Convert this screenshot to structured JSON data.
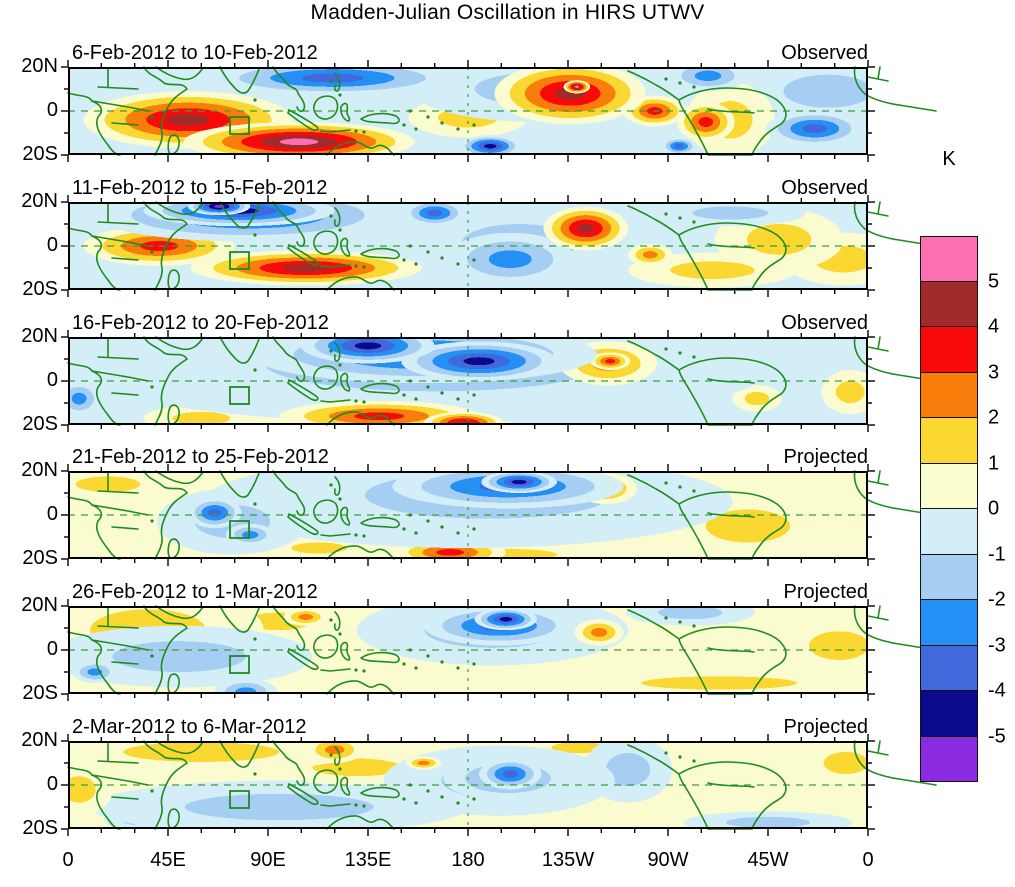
{
  "title": "Madden-Julian Oscillation in HIRS UTWV",
  "colorbar": {
    "unit": "K",
    "tick_labels": [
      "5",
      "4",
      "3",
      "2",
      "1",
      "0",
      "-1",
      "-2",
      "-3",
      "-4",
      "-5"
    ],
    "colors": [
      "#FC6FB2",
      "#A12B28",
      "#F80A0A",
      "#F97D0B",
      "#FBD831",
      "#FBFBD0",
      "#D4EEF7",
      "#A6CEF2",
      "#2490F5",
      "#4269DB",
      "#0A0A8C",
      "#8A2BE2"
    ]
  },
  "axes": {
    "x_ticks": [
      "0",
      "45E",
      "90E",
      "135E",
      "180",
      "135W",
      "90W",
      "45W",
      "0"
    ],
    "x_tick_lons": [
      0,
      45,
      90,
      135,
      180,
      225,
      270,
      315,
      360
    ],
    "y_ticks": [
      "20N",
      "0",
      "20S"
    ]
  },
  "map_style": {
    "coast_color": "#1e8c1e",
    "dash_color": "#3aa03a",
    "frame_color": "#000000"
  },
  "chart_data": {
    "type": "heatmap",
    "title": "Madden-Julian Oscillation in HIRS UTWV",
    "unit": "K",
    "value_levels": [
      5,
      4,
      3,
      2,
      1,
      0,
      -1,
      -2,
      -3,
      -4,
      -5
    ],
    "x_axis": {
      "ticks": [
        "0",
        "45E",
        "90E",
        "135E",
        "180",
        "135W",
        "90W",
        "45W",
        "0"
      ],
      "range_deg_lon": [
        0,
        360
      ]
    },
    "y_axis": {
      "ticks": [
        "20N",
        "0",
        "20S"
      ],
      "range_deg_lat": [
        20,
        -20
      ]
    },
    "legend_position": "right",
    "panels": [
      {
        "label": "6-Feb-2012 to 10-Feb-2012",
        "status": "Observed",
        "base": "#D4EEF7",
        "anomalies": [
          {
            "lon": 229,
            "lat": 11,
            "rlon": 6,
            "rlat": 3,
            "value": 5.4
          },
          {
            "lon": 226,
            "lat": 8,
            "rlon": 34,
            "rlat": 14,
            "value": 4.7
          },
          {
            "lon": 104,
            "lat": -14,
            "rlon": 52,
            "rlat": 9,
            "value": 5.2
          },
          {
            "lon": 54,
            "lat": -4,
            "rlon": 47,
            "rlat": 13,
            "value": 4.6
          },
          {
            "lon": 287,
            "lat": -5,
            "rlon": 13,
            "rlat": 9,
            "value": 3.9
          },
          {
            "lon": 264,
            "lat": 0,
            "rlon": 14,
            "rlat": 7,
            "value": 3.4
          },
          {
            "lon": 119,
            "lat": 15,
            "rlon": 56,
            "rlat": 8,
            "value": -3.6
          },
          {
            "lon": 336,
            "lat": -8,
            "rlon": 22,
            "rlat": 8,
            "value": -3.3
          },
          {
            "lon": 190,
            "lat": -16,
            "rlon": 14,
            "rlat": 5,
            "value": -4.2
          },
          {
            "lon": 275,
            "lat": -16,
            "rlon": 8,
            "rlat": 4,
            "value": -3.6
          },
          {
            "lon": 288,
            "lat": 16,
            "rlon": 18,
            "rlat": 7,
            "value": -2.4
          },
          {
            "lon": 298,
            "lat": -4,
            "rlon": 20,
            "rlat": 17,
            "value": 1.6
          },
          {
            "lon": 212,
            "lat": 10,
            "rlon": 58,
            "rlat": 15,
            "value": -1.7
          },
          {
            "lon": 342,
            "lat": 9,
            "rlon": 40,
            "rlat": 15,
            "value": -1.6
          },
          {
            "lon": 27,
            "lat": 17,
            "rlon": 40,
            "rlat": 6,
            "value": -0.9
          },
          {
            "lon": 180,
            "lat": -3,
            "rlon": 27,
            "rlat": 9,
            "value": 1.3
          }
        ]
      },
      {
        "label": "11-Feb-2012 to 15-Feb-2012",
        "status": "Observed",
        "base": "#D4EEF7",
        "anomalies": [
          {
            "lon": 68,
            "lat": 18,
            "rlon": 14,
            "rlat": 4,
            "value": -5.5
          },
          {
            "lon": 77,
            "lat": 16,
            "rlon": 43,
            "rlat": 7,
            "value": -4.6
          },
          {
            "lon": 81,
            "lat": 14,
            "rlon": 70,
            "rlat": 12,
            "value": -3.2
          },
          {
            "lon": 165,
            "lat": 15,
            "rlon": 14,
            "rlat": 6,
            "value": -3.5
          },
          {
            "lon": 107,
            "lat": -10,
            "rlon": 52,
            "rlat": 8,
            "value": 4.6
          },
          {
            "lon": 41,
            "lat": 0,
            "rlon": 34,
            "rlat": 9,
            "value": 3.7
          },
          {
            "lon": 233,
            "lat": 8,
            "rlon": 19,
            "rlat": 10,
            "value": 4.4
          },
          {
            "lon": 199,
            "lat": -6,
            "rlon": 29,
            "rlat": 12,
            "value": -2.9
          },
          {
            "lon": 262,
            "lat": -4,
            "rlon": 10,
            "rlat": 5,
            "value": 2.7
          },
          {
            "lon": 203,
            "lat": 1,
            "rlon": 52,
            "rlat": 18,
            "value": -1.8
          },
          {
            "lon": 298,
            "lat": 15,
            "rlon": 34,
            "rlat": 6,
            "value": -1.4
          },
          {
            "lon": 290,
            "lat": -11,
            "rlon": 38,
            "rlat": 8,
            "value": 1.5
          },
          {
            "lon": 320,
            "lat": 3,
            "rlon": 29,
            "rlat": 14,
            "value": 1.4
          },
          {
            "lon": 349,
            "lat": -6,
            "rlon": 27,
            "rlat": 12,
            "value": 1.7
          }
        ]
      },
      {
        "label": "16-Feb-2012 to 20-Feb-2012",
        "status": "Observed",
        "base": "#D4EEF7",
        "anomalies": [
          {
            "lon": 135,
            "lat": 16,
            "rlon": 30,
            "rlat": 8,
            "value": -4.7
          },
          {
            "lon": 185,
            "lat": 9,
            "rlon": 35,
            "rlat": 9,
            "value": -4.6
          },
          {
            "lon": 160,
            "lat": 12,
            "rlon": 78,
            "rlat": 13,
            "value": -3.4
          },
          {
            "lon": 244,
            "lat": 9,
            "rlon": 9,
            "rlat": 4,
            "value": 3.5
          },
          {
            "lon": 243,
            "lat": 8,
            "rlon": 22,
            "rlat": 10,
            "value": 2.8
          },
          {
            "lon": 178,
            "lat": -19,
            "rlon": 18,
            "rlat": 5,
            "value": 4.3
          },
          {
            "lon": 140,
            "lat": -16,
            "rlon": 45,
            "rlat": 7,
            "value": 3.6
          },
          {
            "lon": 165,
            "lat": 8,
            "rlon": 115,
            "rlat": 19,
            "value": -2.2
          },
          {
            "lon": 160,
            "lat": 5,
            "rlon": 155,
            "rlat": 24,
            "value": -1.5
          },
          {
            "lon": 245,
            "lat": 6,
            "rlon": 36,
            "rlat": 14,
            "value": 1.8
          },
          {
            "lon": 140,
            "lat": -13,
            "rlon": 68,
            "rlat": 11,
            "value": 1.9
          },
          {
            "lon": 60,
            "lat": -17,
            "rlon": 26,
            "rlat": 6,
            "value": 1.6
          },
          {
            "lon": 5,
            "lat": -8,
            "rlon": 10,
            "rlat": 8,
            "value": -2.3
          },
          {
            "lon": 278,
            "lat": -3,
            "rlon": 10,
            "rlat": 6,
            "value": -2.6
          },
          {
            "lon": 310,
            "lat": -8,
            "rlon": 11,
            "rlat": 6,
            "value": 1.5
          },
          {
            "lon": 352,
            "lat": -5,
            "rlon": 13,
            "rlat": 10,
            "value": 1.4
          },
          {
            "lon": 50,
            "lat": 14,
            "rlon": 22,
            "rlat": 6,
            "value": 1.3
          }
        ]
      },
      {
        "label": "21-Feb-2012 to 25-Feb-2012",
        "status": "Projected",
        "base": "#FBFBD0",
        "anomalies": [
          {
            "lon": 203,
            "lat": 15,
            "rlon": 17,
            "rlat": 5,
            "value": -4.6
          },
          {
            "lon": 198,
            "lat": 13,
            "rlon": 52,
            "rlat": 10,
            "value": -3.3
          },
          {
            "lon": 242,
            "lat": 12,
            "rlon": 14,
            "rlat": 7,
            "value": 2.9
          },
          {
            "lon": 66,
            "lat": 1,
            "rlon": 12,
            "rlat": 7,
            "value": -3.4
          },
          {
            "lon": 82,
            "lat": -9,
            "rlon": 11,
            "rlat": 5,
            "value": -2.7
          },
          {
            "lon": 189,
            "lat": 9,
            "rlon": 83,
            "rlat": 16,
            "value": -2.2
          },
          {
            "lon": 264,
            "lat": 8,
            "rlon": 7,
            "rlat": 4,
            "value": 2.3
          },
          {
            "lon": 74,
            "lat": -3,
            "rlon": 34,
            "rlat": 15,
            "value": -1.6
          },
          {
            "lon": 180,
            "lat": 6,
            "rlon": 119,
            "rlat": 21,
            "value": -1.3
          },
          {
            "lon": 18,
            "lat": 14,
            "rlon": 29,
            "rlat": 7,
            "value": 1.5
          },
          {
            "lon": 113,
            "lat": -15,
            "rlon": 25,
            "rlat": 5,
            "value": 1.5
          },
          {
            "lon": 172,
            "lat": -17,
            "rlon": 25,
            "rlat": 6,
            "value": 3.6
          },
          {
            "lon": 200,
            "lat": -18,
            "rlon": 40,
            "rlat": 5,
            "value": 1.6
          },
          {
            "lon": 306,
            "lat": -5,
            "rlon": 38,
            "rlat": 15,
            "value": 1.5
          }
        ]
      },
      {
        "label": "26-Feb-2012 to 1-Mar-2012",
        "status": "Projected",
        "base": "#FBFBD0",
        "anomalies": [
          {
            "lon": 197,
            "lat": 14,
            "rlon": 14,
            "rlat": 5,
            "value": -4.5
          },
          {
            "lon": 194,
            "lat": 11,
            "rlon": 34,
            "rlat": 9,
            "value": -3.3
          },
          {
            "lon": 12,
            "lat": -10,
            "rlon": 10,
            "rlat": 5,
            "value": -2.5
          },
          {
            "lon": 80,
            "lat": -19,
            "rlon": 14,
            "rlat": 6,
            "value": -2.6
          },
          {
            "lon": 107,
            "lat": 15,
            "rlon": 10,
            "rlat": 4,
            "value": 2.6
          },
          {
            "lon": 239,
            "lat": 8,
            "rlon": 11,
            "rlat": 6,
            "value": 2.8
          },
          {
            "lon": 50,
            "lat": -3,
            "rlon": 60,
            "rlat": 14,
            "value": -1.5
          },
          {
            "lon": 191,
            "lat": 9,
            "rlon": 61,
            "rlat": 16,
            "value": -1.9
          },
          {
            "lon": 36,
            "lat": 9,
            "rlon": 52,
            "rlat": 19,
            "value": 1.9
          },
          {
            "lon": 95,
            "lat": 13,
            "rlon": 30,
            "rlat": 8,
            "value": 1.6
          },
          {
            "lon": 164,
            "lat": 14,
            "rlon": 14,
            "rlat": 5,
            "value": 1.5
          },
          {
            "lon": 280,
            "lat": 17,
            "rlon": 29,
            "rlat": 6,
            "value": -1.4
          },
          {
            "lon": 293,
            "lat": -15,
            "rlon": 70,
            "rlat": 6,
            "value": 1.6
          },
          {
            "lon": 347,
            "lat": 2,
            "rlon": 27,
            "rlat": 13,
            "value": 1.3
          }
        ]
      },
      {
        "label": "2-Mar-2012 to 6-Mar-2012",
        "status": "Projected",
        "base": "#FBFBD0",
        "anomalies": [
          {
            "lon": 199,
            "lat": 5,
            "rlon": 14,
            "rlat": 7,
            "value": -3.5
          },
          {
            "lon": 198,
            "lat": 3,
            "rlon": 29,
            "rlat": 10,
            "value": -2.7
          },
          {
            "lon": 120,
            "lat": 16,
            "rlon": 13,
            "rlat": 6,
            "value": 2.7
          },
          {
            "lon": 160,
            "lat": 10,
            "rlon": 8,
            "rlat": 3,
            "value": 2.5
          },
          {
            "lon": 194,
            "lat": 2,
            "rlon": 52,
            "rlat": 16,
            "value": -1.7
          },
          {
            "lon": 60,
            "lat": 15,
            "rlon": 70,
            "rlat": 9,
            "value": 1.8
          },
          {
            "lon": 130,
            "lat": 8,
            "rlon": 40,
            "rlat": 8,
            "value": 1.6
          },
          {
            "lon": 5,
            "lat": -2,
            "rlon": 15,
            "rlat": 12,
            "value": 1.7
          },
          {
            "lon": 95,
            "lat": -10,
            "rlon": 85,
            "rlat": 12,
            "value": -1.4
          },
          {
            "lon": 100,
            "lat": -19,
            "rlon": 12,
            "rlat": 4,
            "value": -2.3
          },
          {
            "lon": 30,
            "lat": -15,
            "rlon": 14,
            "rlat": 6,
            "value": -1.9
          },
          {
            "lon": 252,
            "lat": 7,
            "rlon": 20,
            "rlat": 15,
            "value": -1.3
          },
          {
            "lon": 230,
            "lat": 17,
            "rlon": 25,
            "rlat": 5,
            "value": 1.4
          },
          {
            "lon": 350,
            "lat": 10,
            "rlon": 20,
            "rlat": 10,
            "value": 1.4
          },
          {
            "lon": 315,
            "lat": -17,
            "rlon": 38,
            "rlat": 5,
            "value": -1.2
          }
        ]
      }
    ]
  }
}
